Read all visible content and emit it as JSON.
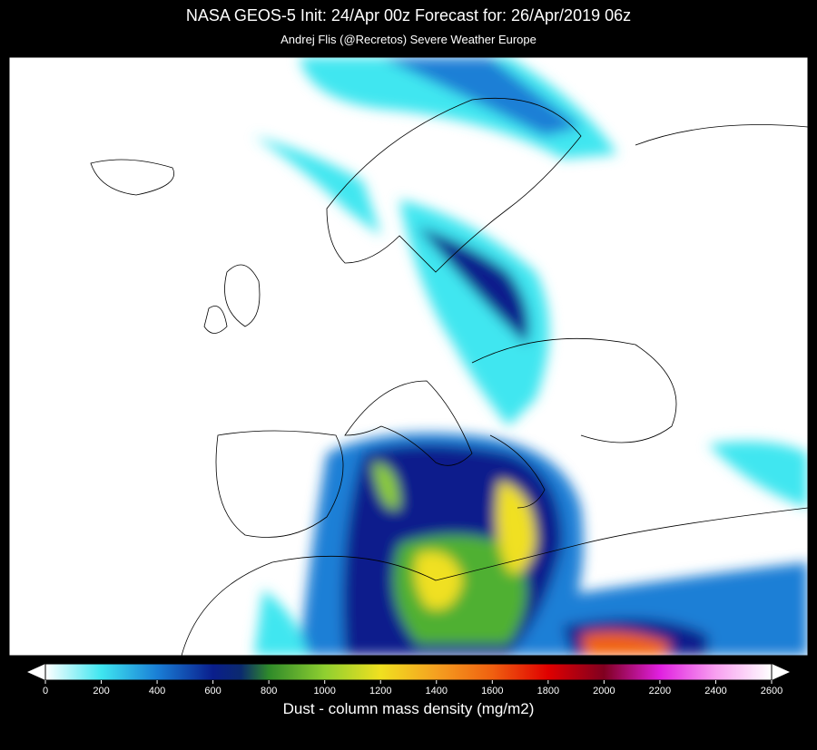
{
  "header": {
    "title": "NASA GEOS-5  Init: 24/Apr 00z     Forecast for: 26/Apr/2019 06z",
    "subtitle": "Andrej Flis (@Recretos)     Severe Weather Europe"
  },
  "colorbar": {
    "label": "Dust - column mass density (mg/m2)",
    "range": [
      0,
      2600
    ],
    "ticks": [
      0,
      200,
      400,
      600,
      800,
      1000,
      1200,
      1400,
      1600,
      1800,
      2000,
      2200,
      2400,
      2600
    ],
    "stops": [
      {
        "value": 0,
        "color": "#ffffff"
      },
      {
        "value": 200,
        "color": "#3fe6f0"
      },
      {
        "value": 400,
        "color": "#1a7fd6"
      },
      {
        "value": 600,
        "color": "#0a1e8c"
      },
      {
        "value": 700,
        "color": "#0b2a6e"
      },
      {
        "value": 800,
        "color": "#2f8a2a"
      },
      {
        "value": 1000,
        "color": "#8fcf30"
      },
      {
        "value": 1200,
        "color": "#f0e020"
      },
      {
        "value": 1400,
        "color": "#f5a020"
      },
      {
        "value": 1600,
        "color": "#f06010"
      },
      {
        "value": 1800,
        "color": "#e00000"
      },
      {
        "value": 2000,
        "color": "#800020"
      },
      {
        "value": 2200,
        "color": "#e020e0"
      },
      {
        "value": 2400,
        "color": "#f8a0f0"
      },
      {
        "value": 2600,
        "color": "#ffffff"
      }
    ]
  }
}
